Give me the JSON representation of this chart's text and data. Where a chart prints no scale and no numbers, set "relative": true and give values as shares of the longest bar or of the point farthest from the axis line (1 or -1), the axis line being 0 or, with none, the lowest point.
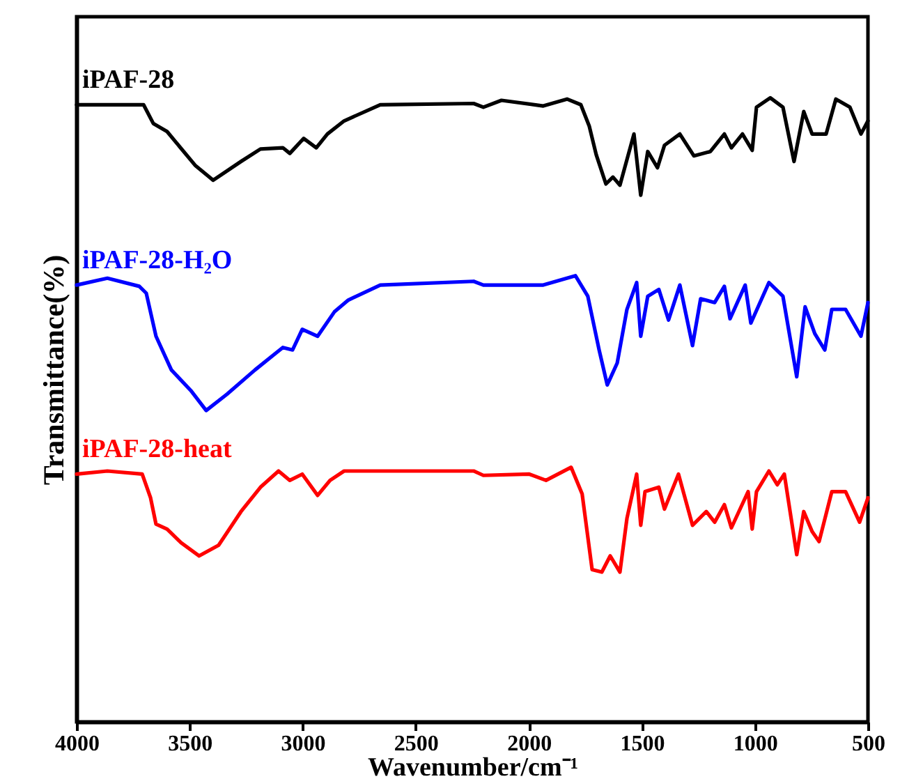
{
  "chart_data": {
    "type": "line",
    "xlabel": "Wavenumber/cm⁻¹",
    "ylabel": "Transmittance(%)",
    "relative": true,
    "xlim": [
      4000,
      500
    ],
    "xticks": [
      4000,
      3500,
      3000,
      2500,
      2000,
      1500,
      1000,
      500
    ],
    "series": [
      {
        "name": "iPAF-28",
        "color": "#000000",
        "x": [
          4000,
          3704,
          3661,
          3600,
          3476,
          3396,
          3273,
          3187,
          3088,
          3057,
          2996,
          2940,
          2891,
          2817,
          2657,
          2244,
          2201,
          2121,
          1936,
          1831,
          1770,
          1733,
          1702,
          1659,
          1628,
          1597,
          1535,
          1505,
          1474,
          1431,
          1400,
          1332,
          1270,
          1197,
          1135,
          1104,
          1055,
          1012,
          993,
          932,
          876,
          827,
          784,
          747,
          685,
          642,
          580,
          531,
          500
        ],
        "values": [
          0.989,
          0.989,
          0.959,
          0.946,
          0.892,
          0.868,
          0.898,
          0.918,
          0.92,
          0.911,
          0.935,
          0.92,
          0.942,
          0.963,
          0.989,
          0.991,
          0.985,
          0.996,
          0.987,
          0.998,
          0.989,
          0.955,
          0.909,
          0.862,
          0.873,
          0.86,
          0.942,
          0.844,
          0.914,
          0.888,
          0.924,
          0.942,
          0.907,
          0.914,
          0.942,
          0.92,
          0.942,
          0.916,
          0.985,
          1.0,
          0.985,
          0.898,
          0.978,
          0.942,
          0.942,
          0.998,
          0.985,
          0.942,
          0.963
        ]
      },
      {
        "name": "iPAF-28-H₂O",
        "color": "#0000ff",
        "x": [
          4000,
          3864,
          3723,
          3692,
          3649,
          3581,
          3495,
          3427,
          3335,
          3211,
          3088,
          3045,
          3002,
          2934,
          2860,
          2798,
          2657,
          2244,
          2201,
          1936,
          1794,
          1739,
          1689,
          1653,
          1609,
          1566,
          1523,
          1505,
          1474,
          1425,
          1382,
          1332,
          1276,
          1240,
          1178,
          1135,
          1110,
          1043,
          1018,
          938,
          876,
          815,
          778,
          735,
          691,
          660,
          599,
          531,
          500
        ],
        "values": [
          0.7,
          0.711,
          0.698,
          0.687,
          0.618,
          0.564,
          0.531,
          0.499,
          0.525,
          0.564,
          0.6,
          0.596,
          0.629,
          0.618,
          0.657,
          0.676,
          0.7,
          0.706,
          0.7,
          0.7,
          0.715,
          0.682,
          0.596,
          0.54,
          0.575,
          0.661,
          0.704,
          0.618,
          0.682,
          0.693,
          0.644,
          0.7,
          0.603,
          0.678,
          0.672,
          0.698,
          0.646,
          0.7,
          0.639,
          0.704,
          0.682,
          0.553,
          0.665,
          0.622,
          0.596,
          0.661,
          0.661,
          0.618,
          0.672
        ]
      },
      {
        "name": "iPAF-28-heat",
        "color": "#ff0000",
        "x": [
          4000,
          3864,
          3710,
          3673,
          3649,
          3600,
          3538,
          3458,
          3372,
          3273,
          3187,
          3107,
          3057,
          3002,
          2934,
          2879,
          2817,
          2244,
          2201,
          1998,
          1924,
          1813,
          1764,
          1720,
          1677,
          1640,
          1597,
          1566,
          1523,
          1505,
          1486,
          1425,
          1400,
          1338,
          1276,
          1215,
          1178,
          1135,
          1104,
          1030,
          1012,
          993,
          938,
          901,
          870,
          815,
          784,
          747,
          716,
          660,
          599,
          537,
          500
        ],
        "values": [
          0.397,
          0.402,
          0.397,
          0.359,
          0.317,
          0.309,
          0.287,
          0.266,
          0.283,
          0.337,
          0.376,
          0.402,
          0.387,
          0.397,
          0.363,
          0.387,
          0.402,
          0.402,
          0.395,
          0.397,
          0.387,
          0.408,
          0.365,
          0.244,
          0.24,
          0.266,
          0.24,
          0.326,
          0.397,
          0.315,
          0.369,
          0.376,
          0.341,
          0.397,
          0.315,
          0.337,
          0.32,
          0.348,
          0.311,
          0.369,
          0.309,
          0.369,
          0.402,
          0.38,
          0.397,
          0.268,
          0.337,
          0.305,
          0.289,
          0.369,
          0.369,
          0.32,
          0.359
        ]
      }
    ]
  }
}
